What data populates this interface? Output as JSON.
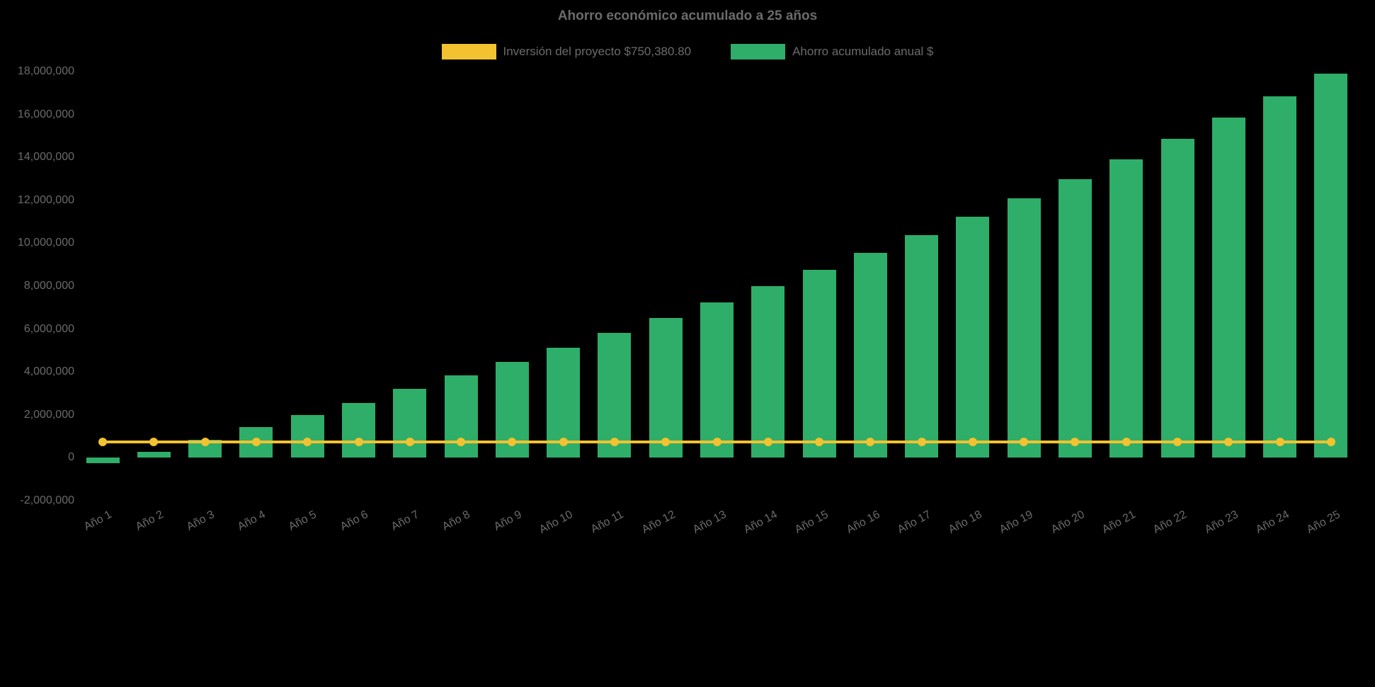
{
  "page": {
    "background_color": "#000000",
    "text_color": "#6b6b6b"
  },
  "chart_data": {
    "type": "bar",
    "title": "Ahorro económico acumulado a 25 años",
    "legend_position": "top",
    "grid": false,
    "xlabel": "",
    "ylabel": "",
    "ylim": [
      -2000000,
      18000000
    ],
    "ytick_step": 2000000,
    "ytick_labels": [
      "18,000,000",
      "16,000,000",
      "14,000,000",
      "12,000,000",
      "10,000,000",
      "8,000,000",
      "6,000,000",
      "4,000,000",
      "2,000,000",
      "0",
      "-2,000,000"
    ],
    "x_tick_rotation_deg": -28,
    "categories": [
      "Año 1",
      "Año 2",
      "Año 3",
      "Año 4",
      "Año 5",
      "Año 6",
      "Año 7",
      "Año 8",
      "Año 9",
      "Año 10",
      "Año 11",
      "Año 12",
      "Año 13",
      "Año 14",
      "Año 15",
      "Año 16",
      "Año 17",
      "Año 18",
      "Año 19",
      "Año 20",
      "Año 21",
      "Año 22",
      "Año 23",
      "Año 24",
      "Año 25"
    ],
    "series": [
      {
        "name": "Inversión del proyecto $750,380.80",
        "type": "line",
        "color": "#f2c230",
        "point_style": "circle",
        "values": [
          750380.8,
          750380.8,
          750380.8,
          750380.8,
          750380.8,
          750380.8,
          750380.8,
          750380.8,
          750380.8,
          750380.8,
          750380.8,
          750380.8,
          750380.8,
          750380.8,
          750380.8,
          750380.8,
          750380.8,
          750380.8,
          750380.8,
          750380.8,
          750380.8,
          750380.8,
          750380.8,
          750380.8,
          750380.8
        ]
      },
      {
        "name": "Ahorro acumulado anual $",
        "type": "bar",
        "color": "#2eae69",
        "values": [
          -250000,
          280000,
          830000,
          1420000,
          2000000,
          2570000,
          3210000,
          3830000,
          4460000,
          5120000,
          5810000,
          6520000,
          7250000,
          8000000,
          8760000,
          9560000,
          10380000,
          11230000,
          12100000,
          12990000,
          13910000,
          14860000,
          15840000,
          16860000,
          17900000
        ]
      }
    ]
  }
}
